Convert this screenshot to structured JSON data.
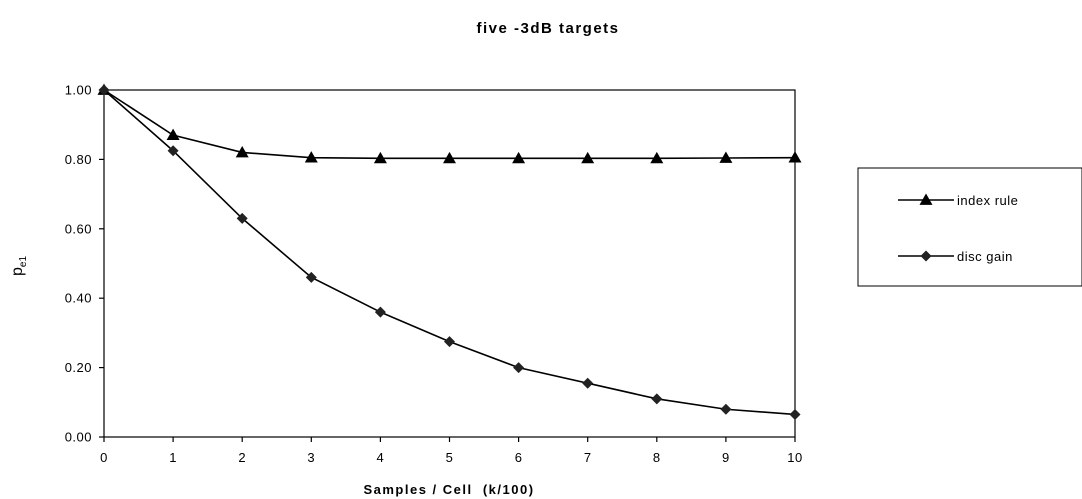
{
  "chart_data": {
    "type": "line",
    "title": "five -3dB targets",
    "xlabel": "Samples / Cell  (k/100)",
    "ylabel": "p",
    "ylabel_sub": "e1",
    "x": [
      0,
      1,
      2,
      3,
      4,
      5,
      6,
      7,
      8,
      9,
      10
    ],
    "xlim": [
      0,
      10
    ],
    "ylim": [
      0,
      1
    ],
    "x_ticks": [
      "0",
      "1",
      "2",
      "3",
      "4",
      "5",
      "6",
      "7",
      "8",
      "9",
      "10"
    ],
    "y_ticks": [
      "0.00",
      "0.20",
      "0.40",
      "0.60",
      "0.80",
      "1.00"
    ],
    "y_tick_values": [
      0,
      0.2,
      0.4,
      0.6,
      0.8,
      1.0
    ],
    "grid": false,
    "legend_position": "right",
    "series": [
      {
        "name": "index rule",
        "marker": "triangle",
        "color": "#000000",
        "values": [
          1.0,
          0.87,
          0.82,
          0.805,
          0.803,
          0.803,
          0.803,
          0.803,
          0.803,
          0.804,
          0.805
        ]
      },
      {
        "name": "disc gain",
        "marker": "diamond",
        "color": "#000000",
        "values": [
          1.0,
          0.825,
          0.63,
          0.46,
          0.36,
          0.275,
          0.2,
          0.155,
          0.11,
          0.08,
          0.065
        ]
      }
    ]
  }
}
